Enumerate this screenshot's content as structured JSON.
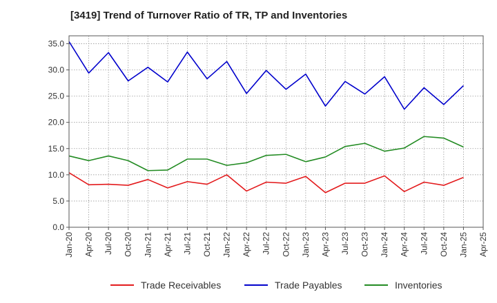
{
  "chart_data": {
    "type": "line",
    "title": "[3419]  Trend of Turnover Ratio of TR, TP and Inventories",
    "xlabel": "",
    "ylabel": "",
    "ylim": [
      0,
      36.5
    ],
    "yticks": [
      "0.0",
      "5.0",
      "10.0",
      "15.0",
      "20.0",
      "25.0",
      "30.0",
      "35.0"
    ],
    "ytick_values": [
      0,
      5,
      10,
      15,
      20,
      25,
      30,
      35
    ],
    "xticks": [
      "Jan-20",
      "Apr-20",
      "Jul-20",
      "Oct-20",
      "Jan-21",
      "Apr-21",
      "Jul-21",
      "Oct-21",
      "Jan-22",
      "Apr-22",
      "Jul-22",
      "Oct-22",
      "Jan-23",
      "Apr-23",
      "Jul-23",
      "Oct-23",
      "Jan-24",
      "Apr-24",
      "Jul-24",
      "Oct-24",
      "Jan-25",
      "Apr-25"
    ],
    "x": [
      "Jan-20",
      "Apr-20",
      "Jul-20",
      "Oct-20",
      "Jan-21",
      "Apr-21",
      "Jul-21",
      "Oct-21",
      "Jan-22",
      "Apr-22",
      "Jul-22",
      "Oct-22",
      "Jan-23",
      "Apr-23",
      "Jul-23",
      "Oct-23",
      "Jan-24",
      "Apr-24",
      "Jul-24",
      "Oct-24",
      "Jan-25"
    ],
    "grid": true,
    "legend_position": "bottom",
    "series": [
      {
        "name": "Trade Receivables",
        "color": "#e31a1c",
        "values": [
          10.4,
          8.1,
          8.2,
          8.0,
          9.1,
          7.5,
          8.7,
          8.2,
          10.0,
          6.9,
          8.6,
          8.4,
          9.7,
          6.6,
          8.4,
          8.4,
          9.8,
          6.8,
          8.6,
          8.0,
          9.5
        ]
      },
      {
        "name": "Trade Payables",
        "color": "#0000cc",
        "values": [
          35.4,
          29.4,
          33.3,
          27.9,
          30.5,
          27.7,
          33.4,
          28.3,
          31.6,
          25.5,
          29.9,
          26.3,
          29.2,
          23.1,
          27.8,
          25.4,
          28.7,
          22.5,
          26.6,
          23.4,
          27.0
        ]
      },
      {
        "name": "Inventories",
        "color": "#228b22",
        "values": [
          13.6,
          12.7,
          13.6,
          12.7,
          10.8,
          10.9,
          13.0,
          13.0,
          11.8,
          12.3,
          13.7,
          13.9,
          12.5,
          13.4,
          15.4,
          16.0,
          14.5,
          15.1,
          17.3,
          17.0,
          15.3
        ]
      }
    ]
  }
}
